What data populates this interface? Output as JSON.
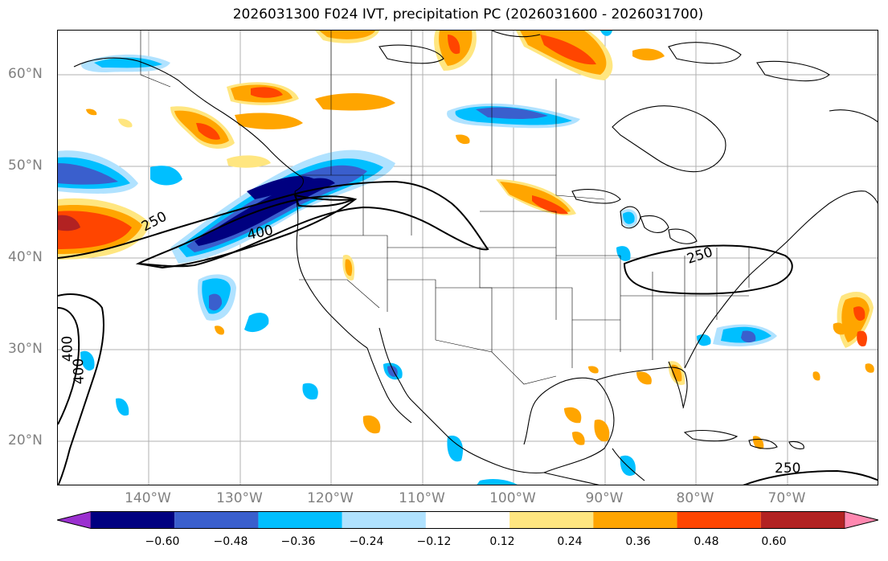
{
  "title": "2026031300 F024 IVT, precipitation PC (2026031600 - 2026031700)",
  "lat_labels": [
    "60°N",
    "50°N",
    "40°N",
    "30°N",
    "20°N"
  ],
  "lon_labels": [
    "140°W",
    "130°W",
    "120°W",
    "110°W",
    "100°W",
    "90°W",
    "80°W",
    "70°W"
  ],
  "contour_labels": [
    "250",
    "400",
    "250",
    "400",
    "400",
    "250"
  ],
  "colorbar": {
    "ticks": [
      "−0.60",
      "−0.48",
      "−0.36",
      "−0.24",
      "−0.12",
      "0.12",
      "0.24",
      "0.36",
      "0.48",
      "0.60"
    ],
    "colors": [
      "#9b30d0",
      "#000080",
      "#3a5fcd",
      "#00bfff",
      "#b0e2ff",
      "#ffffff",
      "#ffe680",
      "#ffa500",
      "#ff4500",
      "#b22222",
      "#ff88b0"
    ]
  },
  "colors": {
    "light_blue": "#b0e2ff",
    "sky_blue": "#00bfff",
    "royal_blue": "#3a5fcd",
    "navy": "#000080",
    "light_yellow": "#ffe680",
    "orange": "#ffa500",
    "red_orange": "#ff4500",
    "dark_red": "#b22222"
  }
}
